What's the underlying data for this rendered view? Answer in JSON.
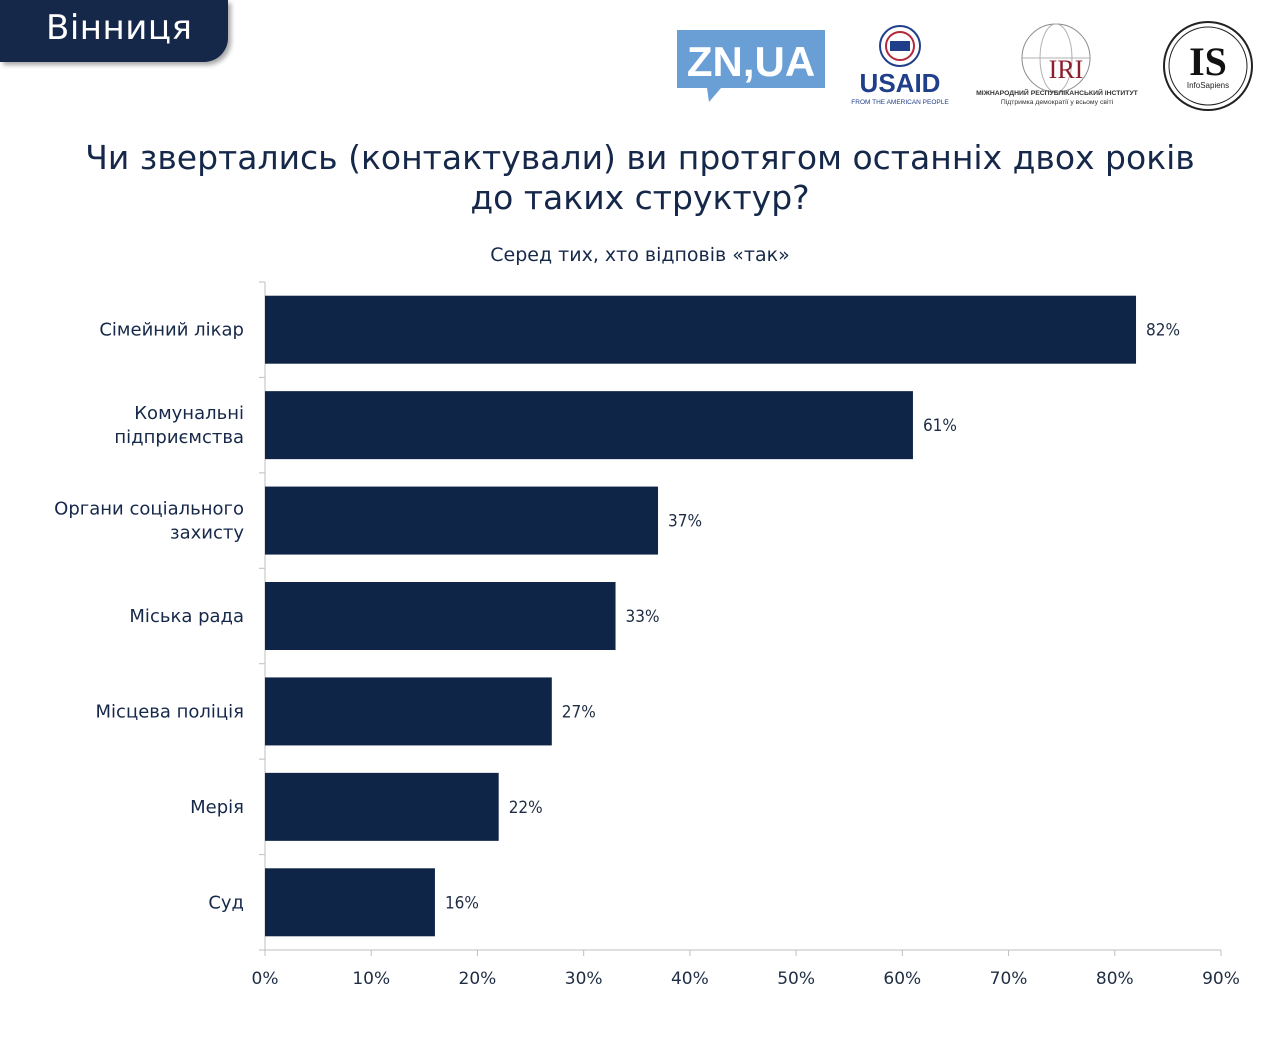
{
  "header": {
    "city": "Вінниця"
  },
  "logos": {
    "zn": "ZN,UA",
    "usaid": "USAID",
    "usaid_tagline": "FROM THE AMERICAN PEOPLE",
    "iri": "IRI",
    "iri_name": "МІЖНАРОДНИЙ РЕСПУБЛІКАНСЬКИЙ ІНСТИТУТ",
    "iri_tagline": "Підтримка демократії у всьому світі",
    "is": "IS",
    "is_name": "InfoSapiens"
  },
  "colors": {
    "bar": "#0f2548",
    "header_bg": "#16284a",
    "text": "#16284a",
    "zn_blue": "#6a9fd6",
    "usaid_red": "#b3283b",
    "usaid_blue": "#1f3f8a"
  },
  "chart_data": {
    "type": "bar",
    "orientation": "horizontal",
    "title": "Чи зверталсь (контактували) ви протягом останніх двох років до таких структур?",
    "title_lines": [
      "Чи звертались (контактували) ви протягом останніх двох років",
      "до таких структур?"
    ],
    "subtitle": "Серед тих, хто відповів «так»",
    "categories": [
      [
        "Сімейний лікар"
      ],
      [
        "Комунальні",
        "підприємства"
      ],
      [
        "Органи соціального",
        "захисту"
      ],
      [
        "Міська рада"
      ],
      [
        "Місцева поліція"
      ],
      [
        "Мерія"
      ],
      [
        "Суд"
      ]
    ],
    "values": [
      82,
      61,
      37,
      33,
      27,
      22,
      16
    ],
    "value_labels": [
      "82%",
      "61%",
      "37%",
      "33%",
      "27%",
      "22%",
      "16%"
    ],
    "xlim": [
      0,
      90
    ],
    "xticks": [
      "0%",
      "10%",
      "20%",
      "30%",
      "40%",
      "50%",
      "60%",
      "70%",
      "80%",
      "90%"
    ],
    "grid": false,
    "legend": "none"
  }
}
